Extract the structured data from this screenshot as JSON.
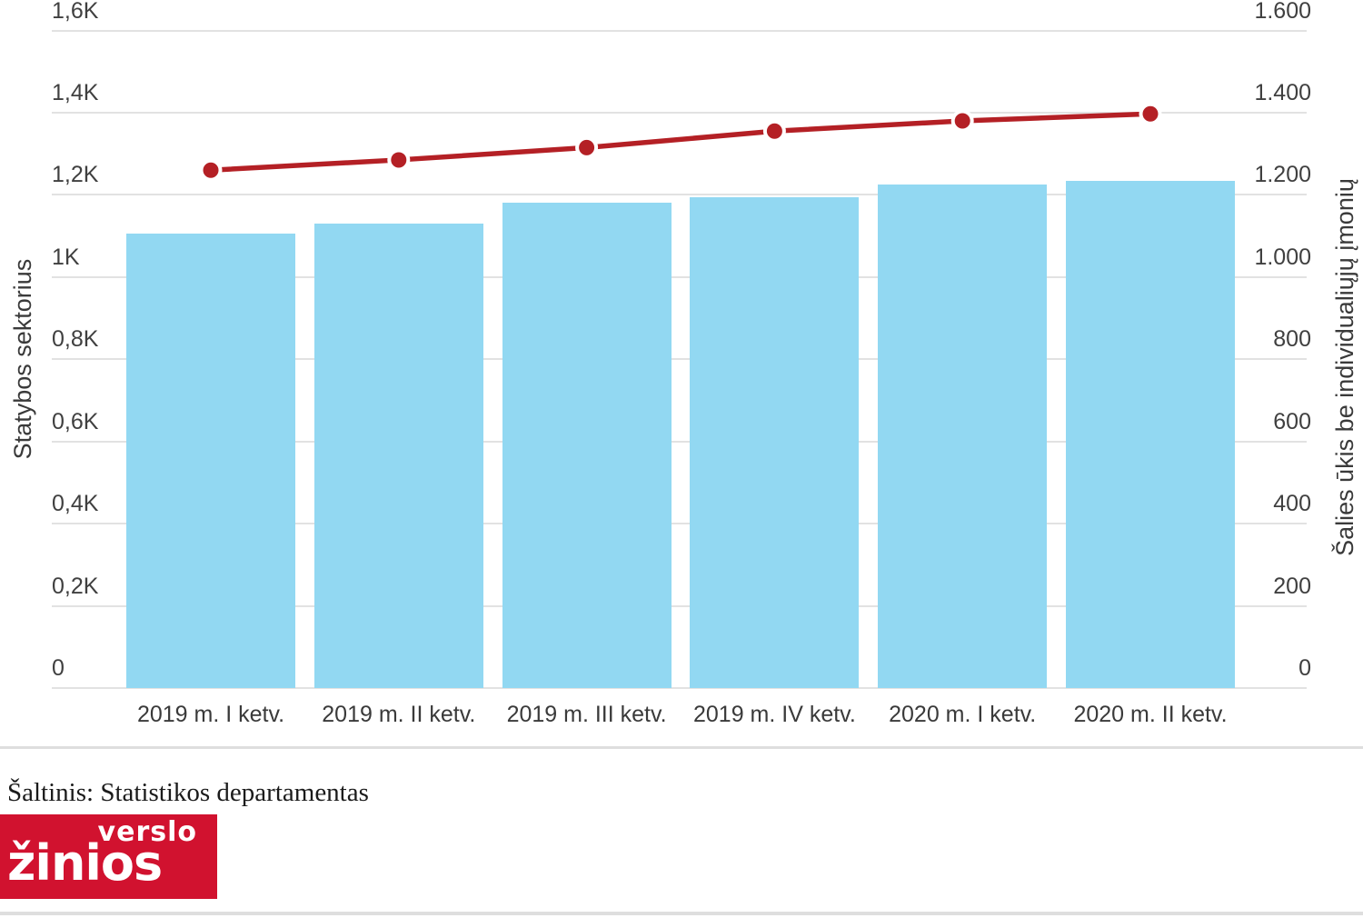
{
  "chart_data": {
    "type": "bar",
    "categories": [
      "2019 m. I ketv.",
      "2019 m. II ketv.",
      "2019 m. III ketv.",
      "2019 m. IV ketv.",
      "2020 m. I ketv.",
      "2020 m. II ketv."
    ],
    "series": [
      {
        "name": "Statybos sektorius",
        "type": "bar",
        "axis": "left",
        "color": "#92d8f2",
        "values": [
          1105,
          1130,
          1180,
          1195,
          1225,
          1235
        ]
      },
      {
        "name": "Šalies ūkis be individualiųjų įmonių",
        "type": "line",
        "axis": "right",
        "color": "#b42025",
        "values": [
          1260,
          1285,
          1315,
          1355,
          1380,
          1397
        ]
      }
    ],
    "left_axis": {
      "title": "Statybos sektorius",
      "ticks": [
        "1,6K",
        "1,4K",
        "1,2K",
        "1K",
        "0,8K",
        "0,6K",
        "0,4K",
        "0,2K",
        "0"
      ],
      "tick_values": [
        1600,
        1400,
        1200,
        1000,
        800,
        600,
        400,
        200,
        0
      ],
      "range": [
        0,
        1600
      ]
    },
    "right_axis": {
      "title": "Šalies ūkis be individualiųjų įmonių",
      "ticks": [
        "1.600",
        "1.400",
        "1.200",
        "1.000",
        "800",
        "600",
        "400",
        "200",
        "0"
      ],
      "tick_values": [
        1600,
        1400,
        1200,
        1000,
        800,
        600,
        400,
        200,
        0
      ],
      "range": [
        0,
        1600
      ]
    },
    "grid": true,
    "legend": "none",
    "title": ""
  },
  "footer": {
    "source": "Šaltinis: Statistikos departamentas",
    "logo_line1": "verslo",
    "logo_line2": "žinios",
    "logo_color": "#d1122f"
  },
  "colors": {
    "bar": "#92d8f2",
    "line": "#b42025",
    "grid": "#e2e2e2",
    "tick_text": "#404040"
  }
}
